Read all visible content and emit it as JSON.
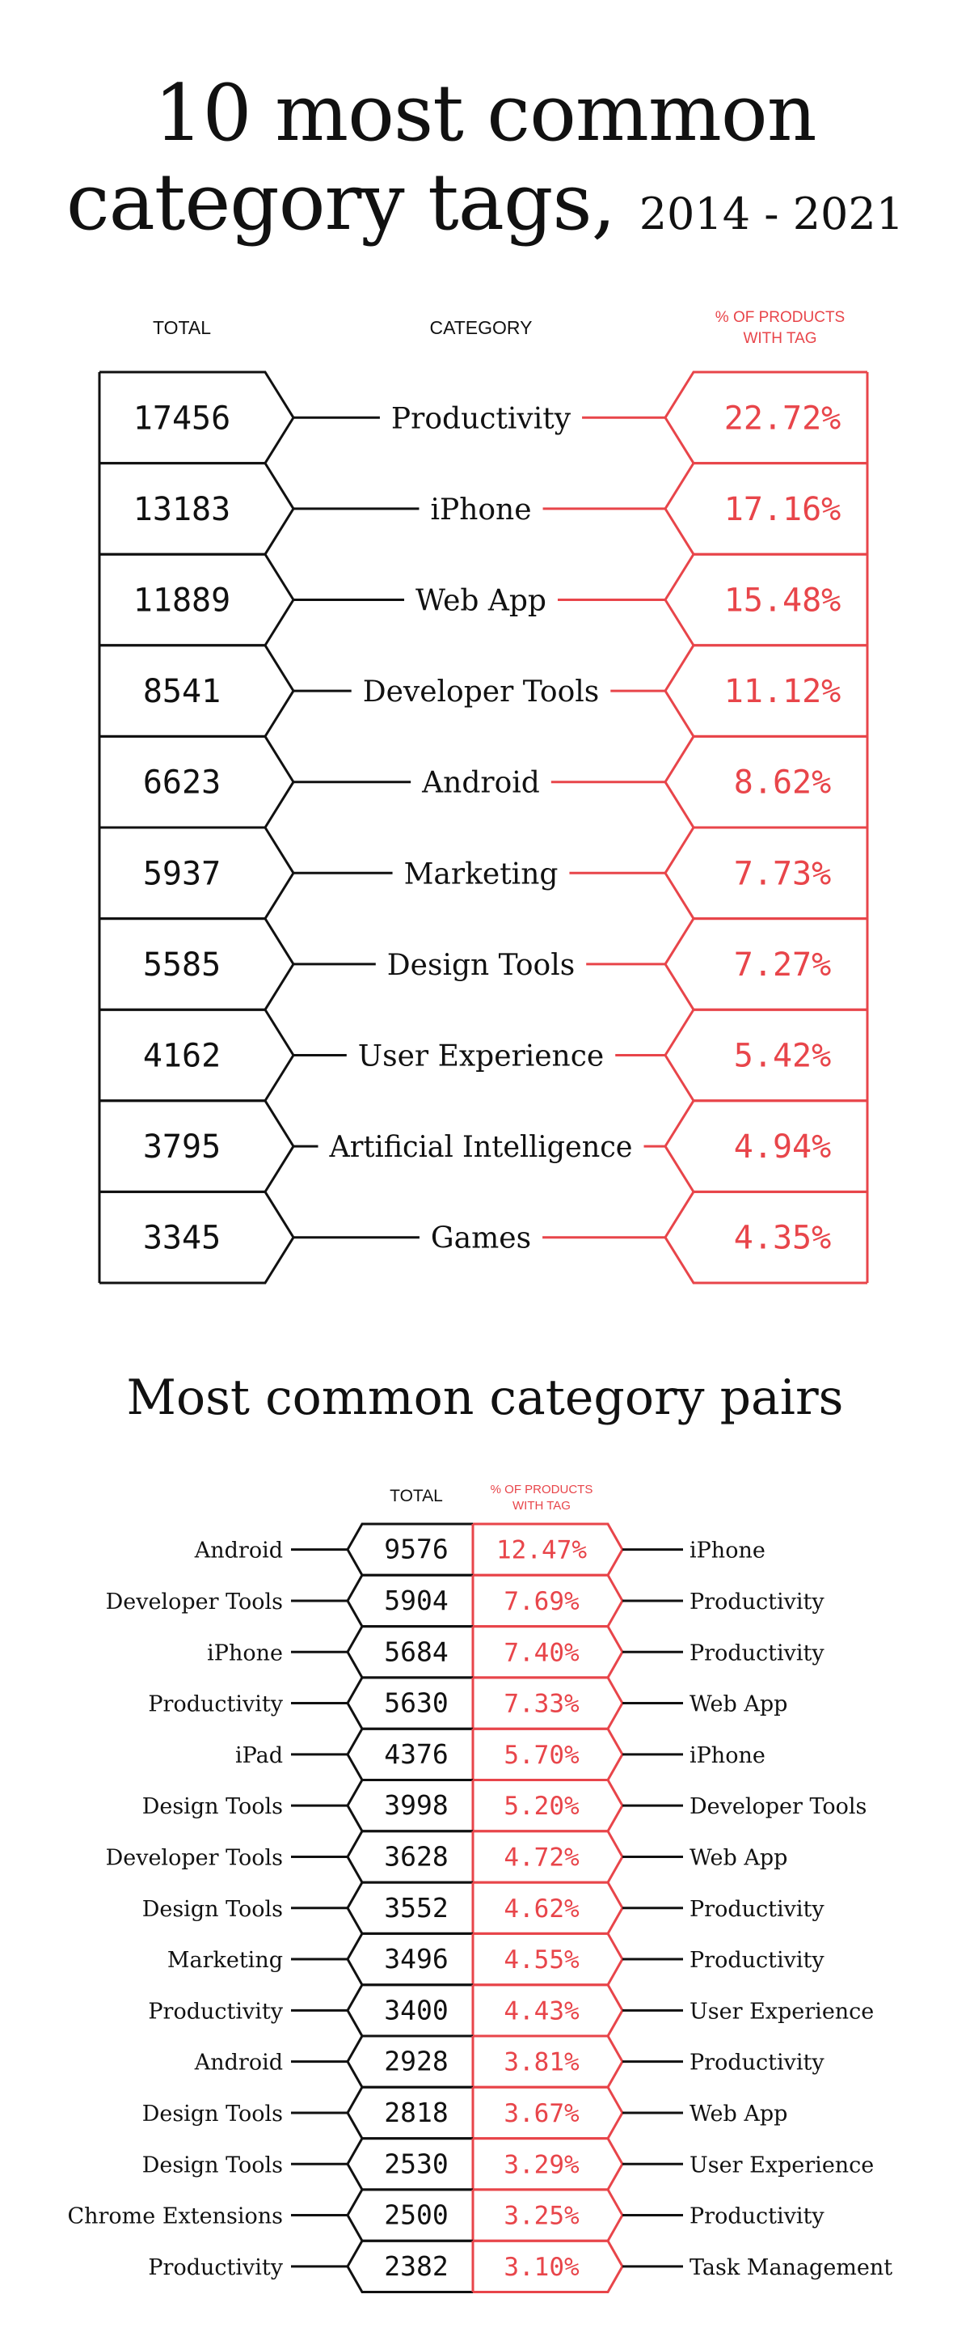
{
  "title": {
    "line1": "10 most common",
    "line2": "category tags,",
    "years": "2014 - 2021"
  },
  "colors": {
    "ink": "#111111",
    "accent": "#e8454a"
  },
  "top_tags": {
    "headers": {
      "total": "TOTAL",
      "category": "CATEGORY",
      "pct_line1": "% OF PRODUCTS",
      "pct_line2": "WITH TAG"
    }
  },
  "pairs": {
    "title": "Most common category pairs",
    "headers": {
      "total": "TOTAL",
      "pct_line1": "% OF PRODUCTS",
      "pct_line2": "WITH TAG"
    }
  },
  "chart_data": [
    {
      "type": "table",
      "columns": [
        "TOTAL",
        "CATEGORY",
        "% OF PRODUCTS WITH TAG"
      ],
      "rows": [
        {
          "total": "17456",
          "category": "Productivity",
          "pct": "22.72%"
        },
        {
          "total": "13183",
          "category": "iPhone",
          "pct": "17.16%"
        },
        {
          "total": "11889",
          "category": "Web App",
          "pct": "15.48%"
        },
        {
          "total": "8541",
          "category": "Developer Tools",
          "pct": "11.12%"
        },
        {
          "total": "6623",
          "category": "Android",
          "pct": "8.62%"
        },
        {
          "total": "5937",
          "category": "Marketing",
          "pct": "7.73%"
        },
        {
          "total": "5585",
          "category": "Design Tools",
          "pct": "7.27%"
        },
        {
          "total": "4162",
          "category": "User Experience",
          "pct": "5.42%"
        },
        {
          "total": "3795",
          "category": "Artificial Intelligence",
          "pct": "4.94%"
        },
        {
          "total": "3345",
          "category": "Games",
          "pct": "4.35%"
        }
      ]
    },
    {
      "type": "table",
      "columns": [
        "",
        "TOTAL",
        "% OF PRODUCTS WITH TAG",
        ""
      ],
      "rows": [
        {
          "left": "Android",
          "total": "9576",
          "pct": "12.47%",
          "right": "iPhone"
        },
        {
          "left": "Developer Tools",
          "total": "5904",
          "pct": "7.69%",
          "right": "Productivity"
        },
        {
          "left": "iPhone",
          "total": "5684",
          "pct": "7.40%",
          "right": "Productivity"
        },
        {
          "left": "Productivity",
          "total": "5630",
          "pct": "7.33%",
          "right": "Web App"
        },
        {
          "left": "iPad",
          "total": "4376",
          "pct": "5.70%",
          "right": "iPhone"
        },
        {
          "left": "Design Tools",
          "total": "3998",
          "pct": "5.20%",
          "right": "Developer Tools"
        },
        {
          "left": "Developer Tools",
          "total": "3628",
          "pct": "4.72%",
          "right": "Web App"
        },
        {
          "left": "Design Tools",
          "total": "3552",
          "pct": "4.62%",
          "right": "Productivity"
        },
        {
          "left": "Marketing",
          "total": "3496",
          "pct": "4.55%",
          "right": "Productivity"
        },
        {
          "left": "Productivity",
          "total": "3400",
          "pct": "4.43%",
          "right": "User Experience"
        },
        {
          "left": "Android",
          "total": "2928",
          "pct": "3.81%",
          "right": "Productivity"
        },
        {
          "left": "Design Tools",
          "total": "2818",
          "pct": "3.67%",
          "right": "Web App"
        },
        {
          "left": "Design Tools",
          "total": "2530",
          "pct": "3.29%",
          "right": "User Experience"
        },
        {
          "left": "Chrome Extensions",
          "total": "2500",
          "pct": "3.25%",
          "right": "Productivity"
        },
        {
          "left": "Productivity",
          "total": "2382",
          "pct": "3.10%",
          "right": "Task Management"
        }
      ]
    }
  ]
}
